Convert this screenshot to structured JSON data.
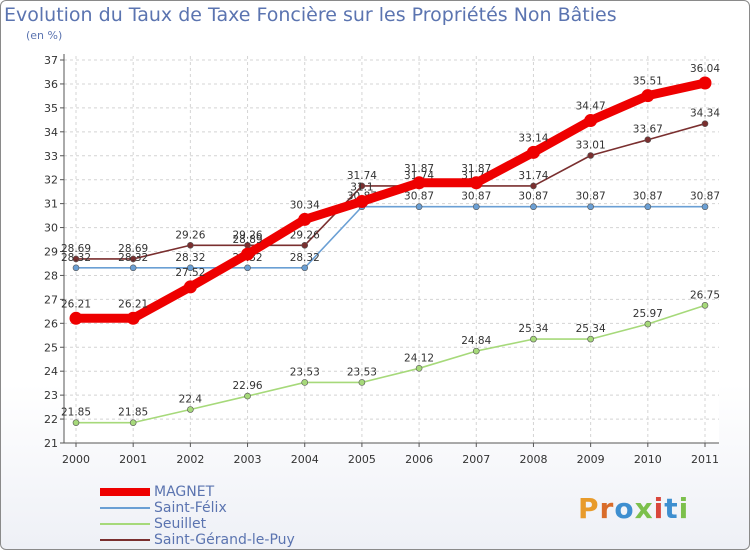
{
  "title": "Evolution du Taux de Taxe Foncière sur les Propriétés Non Bâties",
  "subtitle": "(en %)",
  "logo": {
    "text": "Proxiti",
    "colors": [
      "#e89b2b",
      "#d96c2a",
      "#3e8fd0",
      "#7cc04c",
      "#d9463c",
      "#3e8fd0",
      "#7cc04c"
    ]
  },
  "chart_data": {
    "type": "line",
    "x": [
      "2000",
      "2001",
      "2002",
      "2003",
      "2004",
      "2005",
      "2006",
      "2007",
      "2008",
      "2009",
      "2010",
      "2011"
    ],
    "ylim": [
      21,
      37
    ],
    "yticks": [
      "21",
      "22",
      "23",
      "24",
      "25",
      "26",
      "27",
      "28",
      "29",
      "30",
      "31",
      "32",
      "33",
      "34",
      "35",
      "36",
      "37"
    ],
    "grid": true,
    "legend_position": "bottom-left",
    "series": [
      {
        "name": "MAGNET",
        "color": "#ee0000",
        "values": [
          26.21,
          26.21,
          27.52,
          28.89,
          30.34,
          31.09,
          31.87,
          31.87,
          33.14,
          34.47,
          35.51,
          36.04
        ],
        "labels": [
          "26.21",
          "26.21",
          "27.52",
          "28.89",
          "30.34",
          "31.1",
          "31.87",
          "31.87",
          "33.14",
          "34.47",
          "35.51",
          "36.04"
        ]
      },
      {
        "name": "Saint-Félix",
        "color": "#6a9fd4",
        "values": [
          28.32,
          28.32,
          28.32,
          28.32,
          28.32,
          30.87,
          30.87,
          30.87,
          30.87,
          30.87,
          30.87,
          30.87
        ],
        "labels": [
          "28.32",
          "28.32",
          "28.32",
          "28.32",
          "28.32",
          "30.87",
          "30.87",
          "30.87",
          "30.87",
          "30.87",
          "30.87",
          "30.87"
        ]
      },
      {
        "name": "Seuillet",
        "color": "#a6d97a",
        "values": [
          21.85,
          21.85,
          22.4,
          22.96,
          23.53,
          23.53,
          24.12,
          24.84,
          25.34,
          25.34,
          25.97,
          26.75
        ],
        "labels": [
          "21.85",
          "21.85",
          "22.4",
          "22.96",
          "23.53",
          "23.53",
          "24.12",
          "24.84",
          "25.34",
          "25.34",
          "25.97",
          "26.75"
        ]
      },
      {
        "name": "Saint-Gérand-le-Puy",
        "color": "#7a2f2f",
        "values": [
          28.69,
          28.69,
          29.26,
          29.26,
          29.26,
          31.74,
          31.74,
          31.74,
          31.74,
          33.01,
          33.67,
          34.34
        ],
        "labels": [
          "28.69",
          "28.69",
          "29.26",
          "29.26",
          "29.26",
          "31.74",
          "31.74",
          "31.74",
          "31.74",
          "33.01",
          "33.67",
          "34.34"
        ]
      }
    ]
  }
}
